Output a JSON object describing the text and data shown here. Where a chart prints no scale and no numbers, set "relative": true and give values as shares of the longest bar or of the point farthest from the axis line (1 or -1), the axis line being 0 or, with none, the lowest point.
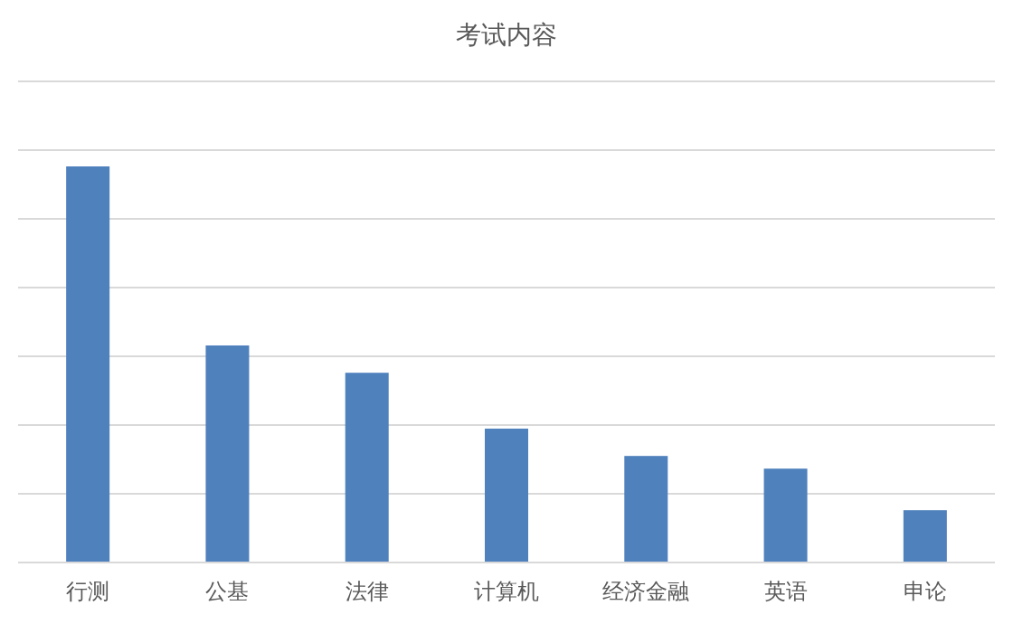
{
  "chart_data": {
    "type": "bar",
    "title": "考试内容",
    "relative": true,
    "grid": "y",
    "color": "#4f81bd",
    "categories": [
      "行测",
      "公基",
      "法律",
      "计算机",
      "经济金融",
      "英语",
      "申论"
    ],
    "values": [
      1,
      0.548,
      0.479,
      0.338,
      0.269,
      0.237,
      0.132
    ]
  }
}
